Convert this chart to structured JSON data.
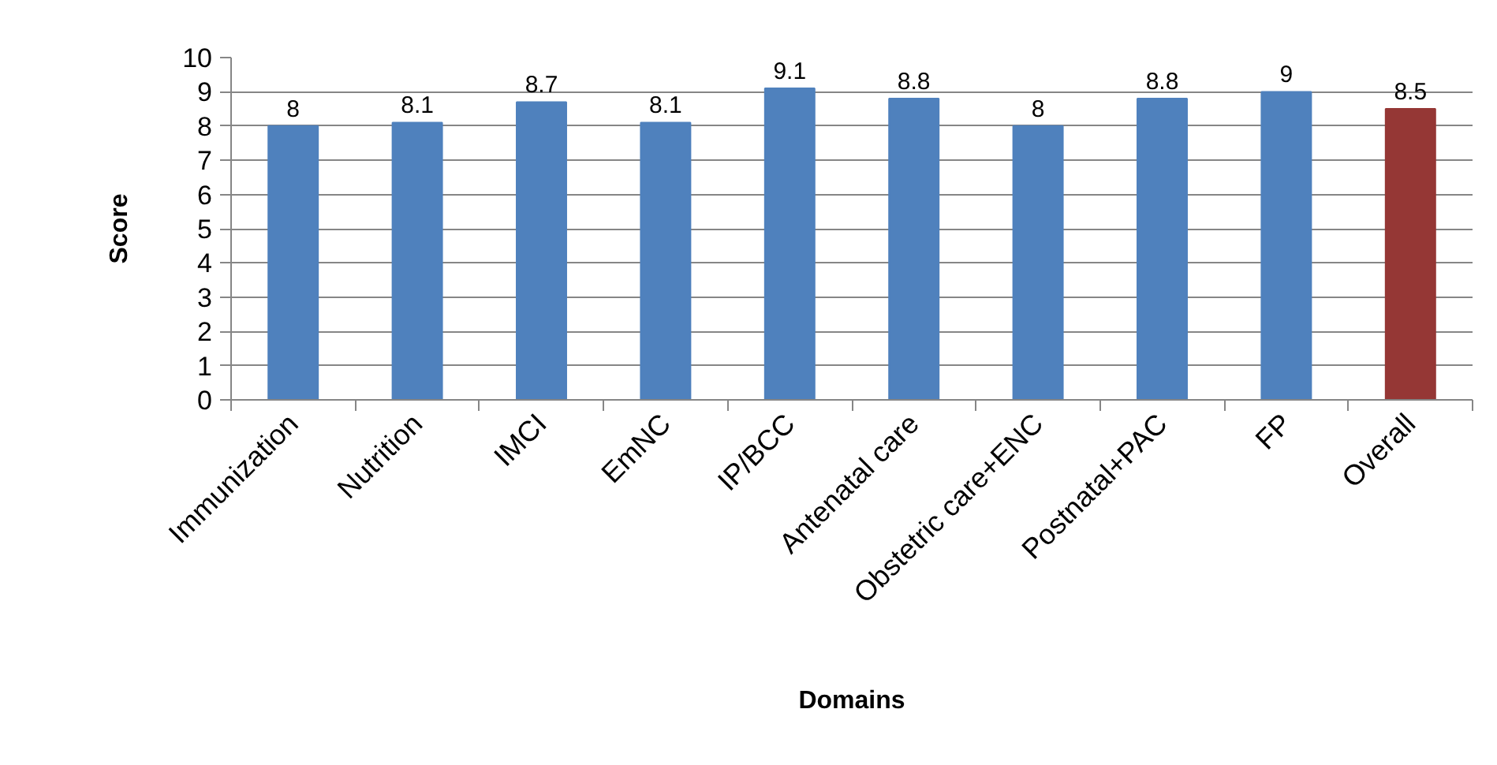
{
  "chart_data": {
    "type": "bar",
    "xlabel": "Domains",
    "ylabel": "Score",
    "categories": [
      "Immunization",
      "Nutrition",
      "IMCI",
      "EmNC",
      "IP/BCC",
      "Antenatal care",
      "Obstetric care+ENC",
      "Postnatal+PAC",
      "FP",
      "Overall"
    ],
    "values": [
      8,
      8.1,
      8.7,
      8.1,
      9.1,
      8.8,
      8,
      8.8,
      9,
      8.5
    ],
    "colors": [
      "#4f81bd",
      "#4f81bd",
      "#4f81bd",
      "#4f81bd",
      "#4f81bd",
      "#4f81bd",
      "#4f81bd",
      "#4f81bd",
      "#4f81bd",
      "#953735"
    ],
    "ylim": [
      0,
      10
    ],
    "yticks": [
      0,
      1,
      2,
      3,
      4,
      5,
      6,
      7,
      8,
      9,
      10
    ],
    "grid": "y",
    "data_labels": true
  }
}
